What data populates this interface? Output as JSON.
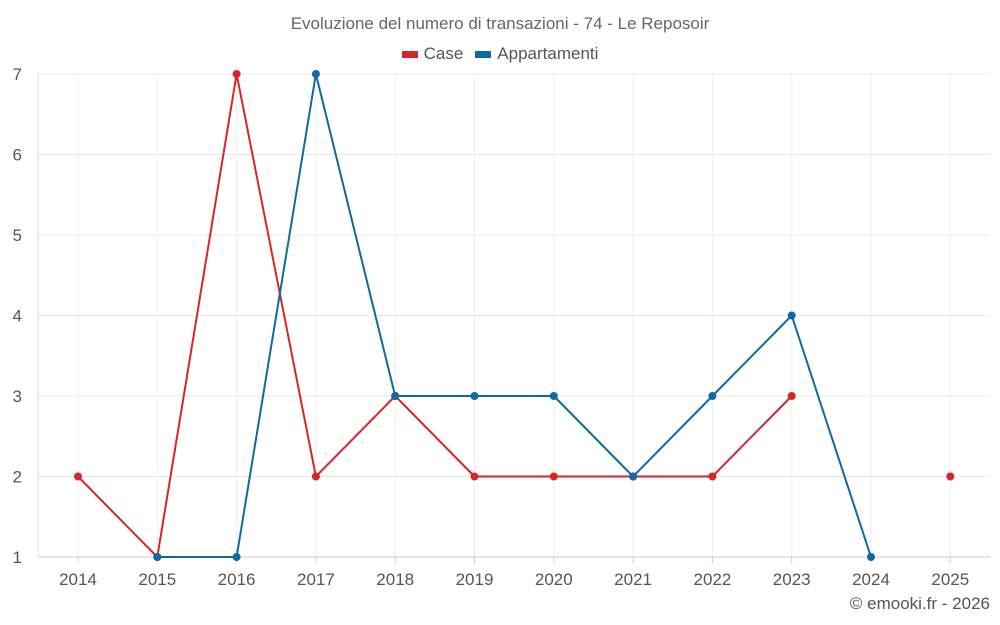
{
  "chart_data": {
    "type": "line",
    "title": "Evoluzione del numero di transazioni - 74 - Le Reposoir",
    "x": [
      "2014",
      "2015",
      "2016",
      "2017",
      "2018",
      "2019",
      "2020",
      "2021",
      "2022",
      "2023",
      "2024",
      "2025"
    ],
    "series": [
      {
        "name": "Case",
        "color": "#d62728",
        "values": [
          2,
          1,
          7,
          2,
          3,
          2,
          2,
          2,
          2,
          3,
          null,
          2
        ]
      },
      {
        "name": "Appartamenti",
        "color": "#0f6aa3",
        "values": [
          null,
          1,
          1,
          7,
          3,
          3,
          3,
          2,
          3,
          4,
          1,
          null
        ]
      }
    ],
    "ylim": [
      1,
      7
    ],
    "yticks": [
      1,
      2,
      3,
      4,
      5,
      6,
      7
    ],
    "grid": true,
    "legend_position": "top-center"
  },
  "credit": "© emooki.fr - 2026"
}
